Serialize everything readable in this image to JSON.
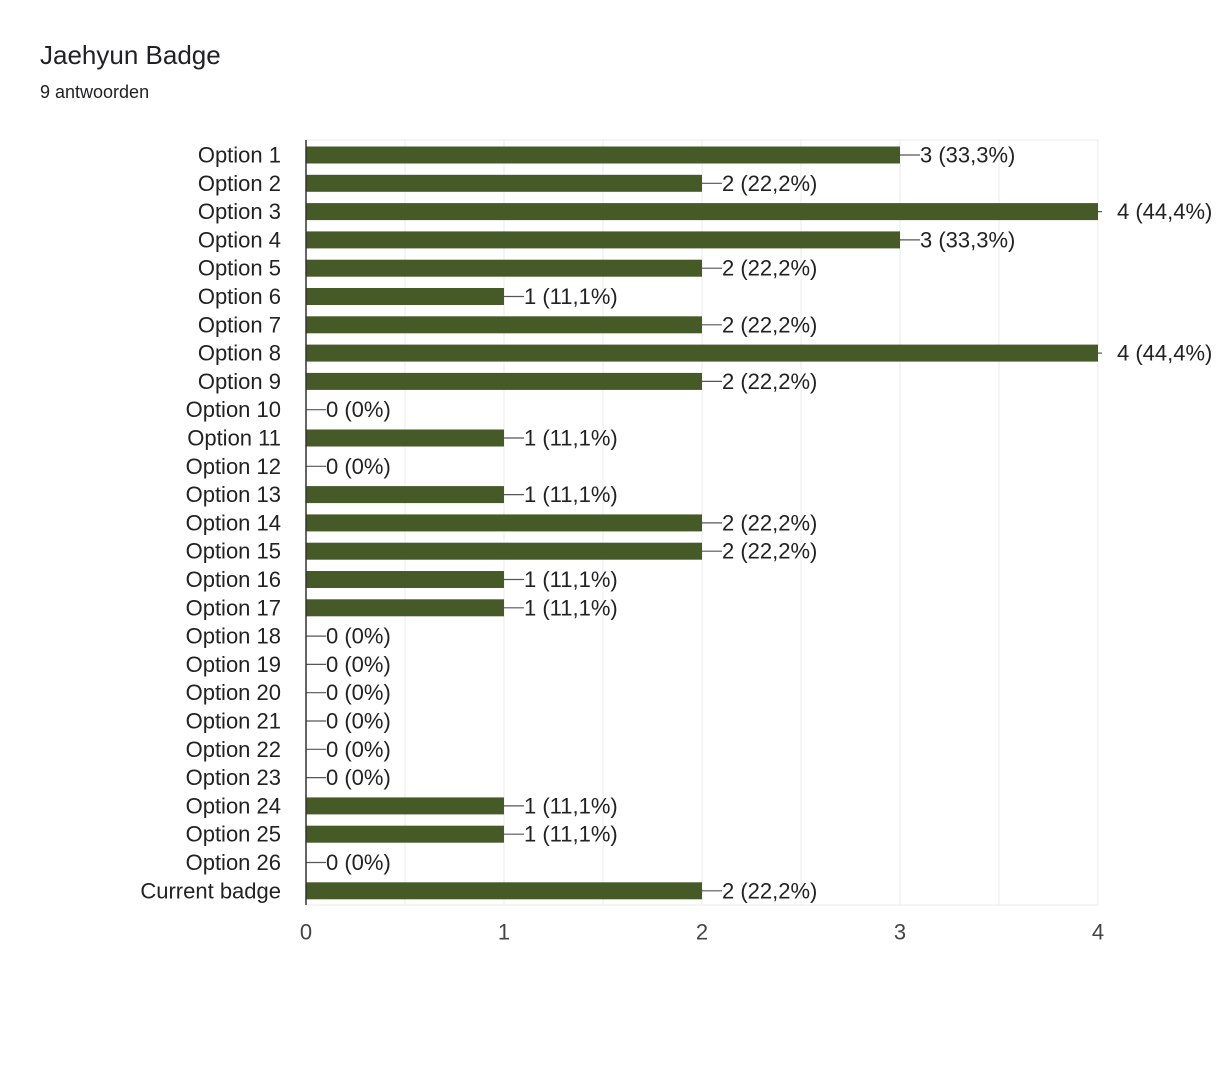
{
  "header": {
    "title": "Jaehyun Badge",
    "subtitle": "9 antwoorden"
  },
  "colors": {
    "bar": "#465a27",
    "grid": "#ebebeb",
    "axis": "#333333",
    "connector": "#555555"
  },
  "chart_data": {
    "type": "bar",
    "orientation": "horizontal",
    "title": "Jaehyun Badge",
    "subtitle": "9 antwoorden",
    "xlabel": "",
    "ylabel": "",
    "xlim": [
      0,
      4
    ],
    "grid": true,
    "x_ticks": [
      "0",
      "1",
      "2",
      "3",
      "4"
    ],
    "categories": [
      "Option 1",
      "Option 2",
      "Option 3",
      "Option 4",
      "Option 5",
      "Option 6",
      "Option 7",
      "Option 8",
      "Option 9",
      "Option 10",
      "Option 11",
      "Option 12",
      "Option 13",
      "Option 14",
      "Option 15",
      "Option 16",
      "Option 17",
      "Option 18",
      "Option 19",
      "Option 20",
      "Option 21",
      "Option 22",
      "Option 23",
      "Option 24",
      "Option 25",
      "Option 26",
      "Current badge"
    ],
    "values": [
      3,
      2,
      4,
      3,
      2,
      1,
      2,
      4,
      2,
      0,
      1,
      0,
      1,
      2,
      2,
      1,
      1,
      0,
      0,
      0,
      0,
      0,
      0,
      1,
      1,
      0,
      2
    ],
    "data_labels": [
      "3 (33,3%)",
      "2 (22,2%)",
      "4 (44,4%)",
      "3 (33,3%)",
      "2 (22,2%)",
      "1 (11,1%)",
      "2 (22,2%)",
      "4 (44,4%)",
      "2 (22,2%)",
      "0 (0%)",
      "1 (11,1%)",
      "0 (0%)",
      "1 (11,1%)",
      "2 (22,2%)",
      "2 (22,2%)",
      "1 (11,1%)",
      "1 (11,1%)",
      "0 (0%)",
      "0 (0%)",
      "0 (0%)",
      "0 (0%)",
      "0 (0%)",
      "0 (0%)",
      "1 (11,1%)",
      "1 (11,1%)",
      "0 (0%)",
      "2 (22,2%)"
    ]
  }
}
